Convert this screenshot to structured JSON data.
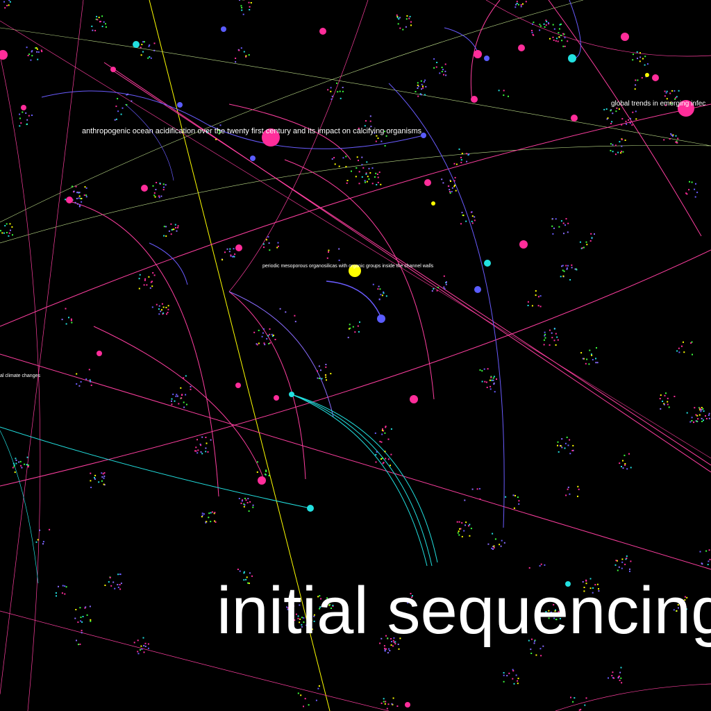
{
  "labels": {
    "ocean": "anthropogenic ocean acidification over the twenty first century and its impact on calcifying organisms",
    "infections": "global trends in emerging infec",
    "organosilicas": "periodic mesoporous organosilicas with organic groups inside the channel walls",
    "climate": "al climate changes",
    "headline": "initial sequencing"
  }
}
